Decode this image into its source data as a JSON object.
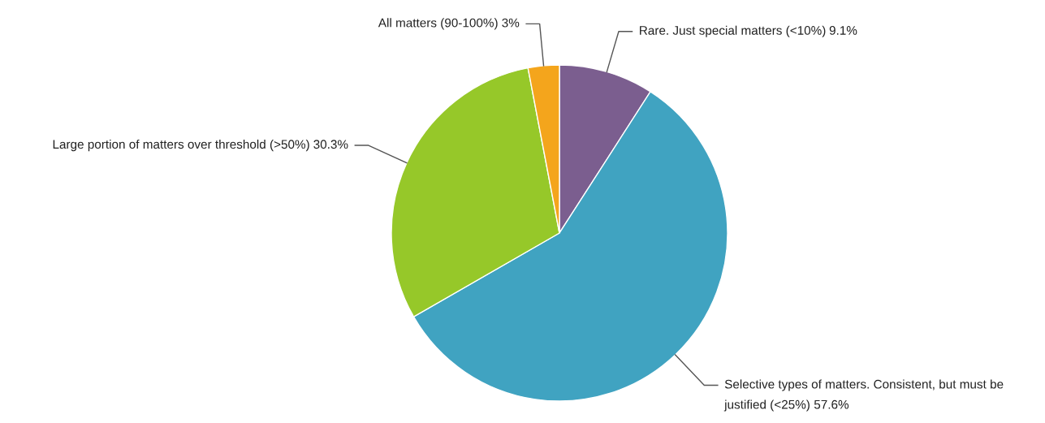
{
  "chart_data": {
    "type": "pie",
    "categories": [
      "Rare. Just special matters (<10%)",
      "Selective types of matters. Consistent, but must be justified (<25%)",
      "Large portion of matters over threshold (>50%)",
      "All matters (90-100%)"
    ],
    "values": [
      9.1,
      57.6,
      30.3,
      3
    ],
    "value_labels": [
      "9.1%",
      "57.6%",
      "30.3%",
      "3%"
    ],
    "colors": [
      "#7b5e8f",
      "#40a3c1",
      "#96c829",
      "#f4a51c"
    ],
    "legend": false
  }
}
